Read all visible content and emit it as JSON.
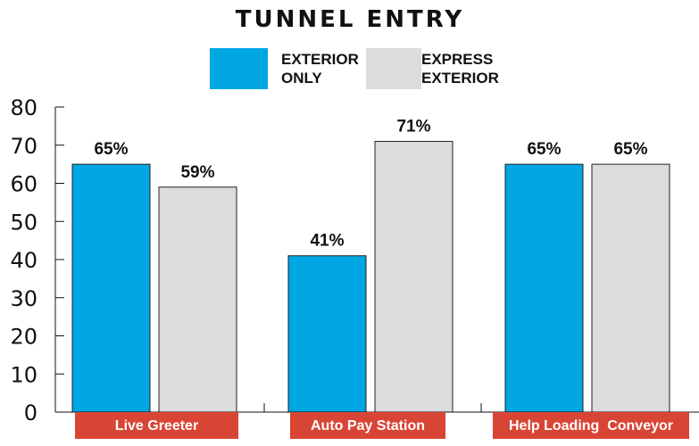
{
  "chart_data": {
    "type": "bar",
    "title": "TUNNEL ENTRY",
    "categories": [
      "Live Greeter",
      "Auto Pay Station",
      "Help Loading  Conveyor"
    ],
    "series": [
      {
        "name": "EXTERIOR ONLY",
        "name_lines": [
          "EXTERIOR",
          "ONLY"
        ],
        "values": [
          65,
          41,
          65
        ],
        "labels": [
          "65%",
          "41%",
          "65%"
        ],
        "color": "#00a7e3"
      },
      {
        "name": "EXPRESS EXTERIOR",
        "name_lines": [
          "EXPRESS",
          "EXTERIOR"
        ],
        "values": [
          59,
          71,
          65
        ],
        "labels": [
          "59%",
          "71%",
          "65%"
        ],
        "color": "#dcdcdc"
      }
    ],
    "ylim": [
      0,
      80
    ],
    "yticks": [
      0,
      10,
      20,
      30,
      40,
      50,
      60,
      70,
      80
    ],
    "xlabel": "",
    "ylabel": "",
    "grid": false,
    "legend_position": "top-center",
    "category_label_color": "#d94535"
  }
}
